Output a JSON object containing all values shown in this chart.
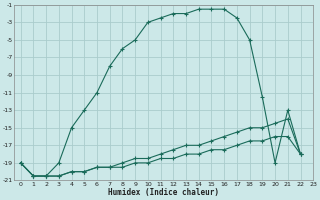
{
  "xlabel": "Humidex (Indice chaleur)",
  "bg_color": "#cce8e8",
  "grid_color": "#aacccc",
  "line_color": "#1a6b5a",
  "xlim": [
    -0.5,
    23
  ],
  "ylim": [
    -21,
    -1
  ],
  "xticks": [
    0,
    1,
    2,
    3,
    4,
    5,
    6,
    7,
    8,
    9,
    10,
    11,
    12,
    13,
    14,
    15,
    16,
    17,
    18,
    19,
    20,
    21,
    22,
    23
  ],
  "yticks": [
    -21,
    -19,
    -17,
    -15,
    -13,
    -11,
    -9,
    -7,
    -5,
    -3,
    -1
  ],
  "curve1_x": [
    0,
    1,
    2,
    3,
    4,
    5,
    6,
    7,
    8,
    9,
    10,
    11,
    12,
    13,
    14,
    15,
    16,
    17,
    18,
    19,
    20,
    21,
    22
  ],
  "curve1_y": [
    -19,
    -20.5,
    -20.5,
    -19,
    -15,
    -13,
    -11,
    -8,
    -6,
    -5,
    -3,
    -2.5,
    -2,
    -2,
    -1.5,
    -1.5,
    -1.5,
    -2.5,
    -5,
    -11.5,
    -19,
    -13,
    -18
  ],
  "curve2_x": [
    0,
    1,
    2,
    3,
    4,
    5,
    6,
    7,
    8,
    9,
    10,
    11,
    12,
    13,
    14,
    15,
    16,
    17,
    18,
    19,
    20,
    21,
    22
  ],
  "curve2_y": [
    -19,
    -20.5,
    -20.5,
    -20.5,
    -20,
    -20,
    -19.5,
    -19.5,
    -19,
    -18.5,
    -18.5,
    -18,
    -17.5,
    -17,
    -17,
    -16.5,
    -16,
    -15.5,
    -15,
    -15,
    -14.5,
    -14,
    -18
  ],
  "curve3_x": [
    0,
    1,
    2,
    3,
    4,
    5,
    6,
    7,
    8,
    9,
    10,
    11,
    12,
    13,
    14,
    15,
    16,
    17,
    18,
    19,
    20,
    21,
    22
  ],
  "curve3_y": [
    -19,
    -20.5,
    -20.5,
    -20.5,
    -20,
    -20,
    -19.5,
    -19.5,
    -19.5,
    -19,
    -19,
    -18.5,
    -18.5,
    -18,
    -18,
    -17.5,
    -17.5,
    -17,
    -16.5,
    -16.5,
    -16,
    -16,
    -18
  ]
}
